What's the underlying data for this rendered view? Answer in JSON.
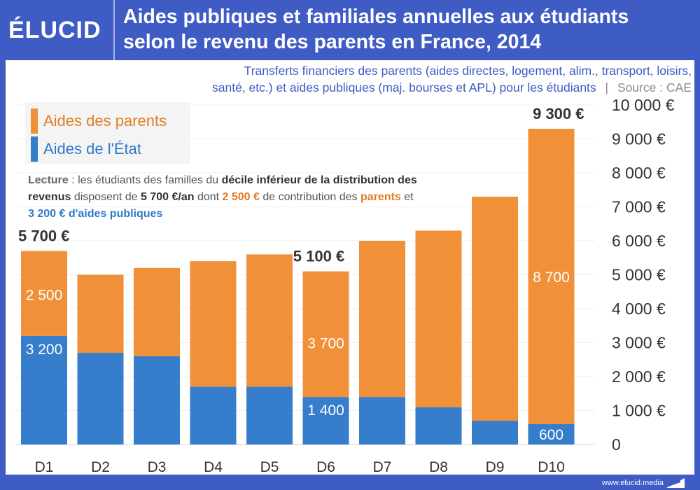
{
  "header": {
    "logo": "ÉLUCID",
    "title_line1": "Aides publiques et familiales annuelles aux étudiants",
    "title_line2": "selon le revenu des parents en France, 2014"
  },
  "subtitle": {
    "line1": "Transferts financiers des parents (aides directes, logement, alim., transport, loisirs,",
    "line2": "santé, etc.) et aides publiques (maj. bourses et APL) pour les étudiants",
    "separator": "|",
    "source": "Source : CAE"
  },
  "legend": {
    "parents": "Aides des parents",
    "state": "Aides de l'État"
  },
  "lecture": {
    "p1": "Lecture",
    "p2": " : les étudiants des familles du ",
    "p3": "décile inférieur de la distribution des revenus",
    "p4": " disposent de ",
    "p5": "5 700 €/an",
    "p6": " dont ",
    "p7": "2 500 €",
    "p8": " de contribution des ",
    "p9": "parents",
    "p10": " et ",
    "p11": "3 200 € d'aides publiques"
  },
  "footer": {
    "url": "www.elucid.media"
  },
  "colors": {
    "parents": "#f0913a",
    "state": "#367ecb",
    "brand": "#3f5bc4"
  },
  "chart_data": {
    "type": "bar",
    "stacked": true,
    "title": "Aides publiques et familiales annuelles aux étudiants selon le revenu des parents en France, 2014",
    "xlabel": "",
    "ylabel": "",
    "categories": [
      "D1",
      "D2",
      "D3",
      "D4",
      "D5",
      "D6",
      "D7",
      "D8",
      "D9",
      "D10"
    ],
    "series": [
      {
        "name": "Aides de l'État",
        "values": [
          3200,
          2700,
          2600,
          1700,
          1700,
          1400,
          1400,
          1100,
          700,
          600
        ]
      },
      {
        "name": "Aides des parents",
        "values": [
          2500,
          2300,
          2600,
          3700,
          3900,
          3700,
          4600,
          5200,
          6600,
          8700
        ]
      }
    ],
    "ylim": [
      0,
      10000
    ],
    "yticks": [
      0,
      1000,
      2000,
      3000,
      4000,
      5000,
      6000,
      7000,
      8000,
      9000,
      10000
    ],
    "ytick_labels": [
      "0",
      "1 000 €",
      "2 000 €",
      "3 000 €",
      "4 000 €",
      "5 000 €",
      "6 000 €",
      "7 000 €",
      "8 000 €",
      "9 000 €",
      "10 000 €"
    ],
    "y_axis_side": "right",
    "grid": true,
    "legend_position": "top-left",
    "segment_labels": [
      {
        "category": "D1",
        "series": "Aides des parents",
        "text": "2 500"
      },
      {
        "category": "D1",
        "series": "Aides de l'État",
        "text": "3 200"
      },
      {
        "category": "D6",
        "series": "Aides des parents",
        "text": "3 700"
      },
      {
        "category": "D6",
        "series": "Aides de l'État",
        "text": "1 400"
      },
      {
        "category": "D10",
        "series": "Aides des parents",
        "text": "8 700"
      },
      {
        "category": "D10",
        "series": "Aides de l'État",
        "text": "600"
      }
    ],
    "total_labels": [
      {
        "category": "D1",
        "text": "5 700 €"
      },
      {
        "category": "D6",
        "text": "5 100 €"
      },
      {
        "category": "D10",
        "text": "9 300 €"
      }
    ]
  }
}
